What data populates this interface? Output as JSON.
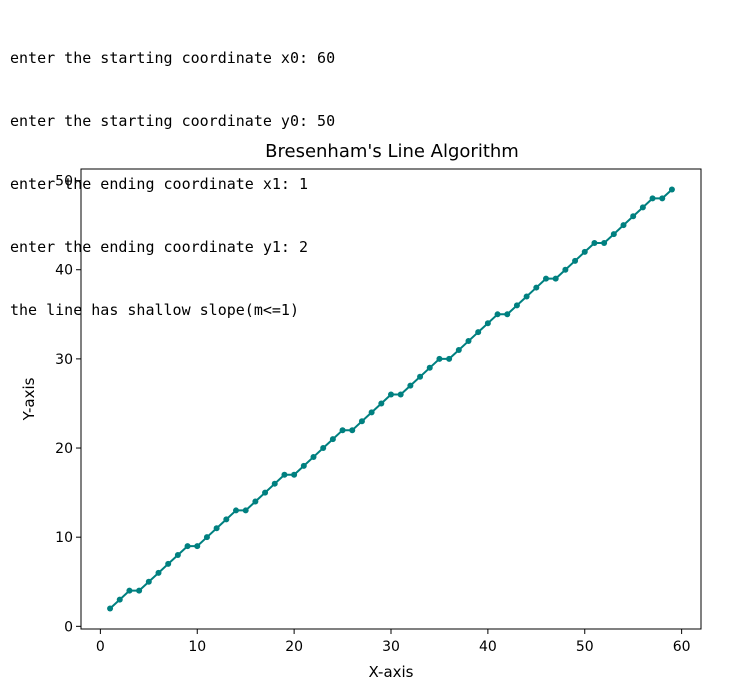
{
  "console": {
    "lines": [
      "enter the starting coordinate x0: 60",
      "enter the starting coordinate y0: 50",
      "enter the ending coordinate x1: 1",
      "enter the ending coordinate y1: 2",
      "the line has shallow slope(m<=1)"
    ]
  },
  "chart_data": {
    "type": "line",
    "title": "Bresenham's Line Algorithm",
    "xlabel": "X-axis",
    "ylabel": "Y-axis",
    "xlim": [
      -2.0,
      62.0
    ],
    "ylim": [
      -0.3,
      51.3
    ],
    "xticks": [
      0,
      10,
      20,
      30,
      40,
      50,
      60
    ],
    "yticks": [
      0,
      10,
      20,
      30,
      40,
      50
    ],
    "grid": false,
    "color": "#008080",
    "series": [
      {
        "x": [
          1,
          2,
          3,
          4,
          5,
          6,
          7,
          8,
          9,
          10,
          11,
          12,
          13,
          14,
          15,
          16,
          17,
          18,
          19,
          20,
          21,
          22,
          23,
          24,
          25,
          26,
          27,
          28,
          29,
          30,
          31,
          32,
          33,
          34,
          35,
          36,
          37,
          38,
          39,
          40,
          41,
          42,
          43,
          44,
          45,
          46,
          47,
          48,
          49,
          50,
          51,
          52,
          53,
          54,
          55,
          56,
          57,
          58,
          59
        ],
        "y": [
          2,
          3,
          4,
          4,
          5,
          6,
          7,
          8,
          9,
          9,
          10,
          11,
          12,
          13,
          13,
          14,
          15,
          16,
          17,
          17,
          18,
          19,
          20,
          21,
          22,
          22,
          23,
          24,
          25,
          26,
          26,
          27,
          28,
          29,
          30,
          30,
          31,
          32,
          33,
          34,
          35,
          35,
          36,
          37,
          38,
          39,
          39,
          40,
          41,
          42,
          43,
          43,
          44,
          45,
          46,
          47,
          48,
          48,
          49
        ]
      }
    ]
  }
}
